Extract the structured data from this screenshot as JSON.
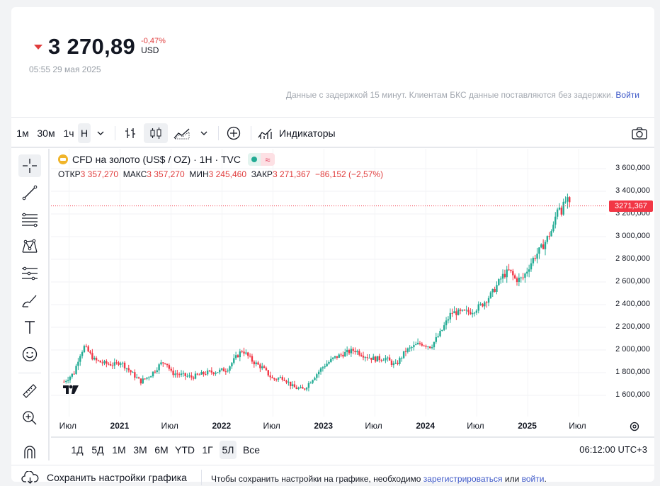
{
  "quote": {
    "price": "3 270,89",
    "change": "-0,47%",
    "currency": "USD",
    "timestamp": "05:55 29 мая 2025",
    "delay_note": "Данные с задержкой 15 минут. Клиентам БКС данные поставляются без задержки.",
    "login_link": "Войти"
  },
  "toolbar": {
    "intervals": [
      "1м",
      "30м",
      "1ч",
      "Н"
    ],
    "indicators_label": "Индикаторы"
  },
  "legend": {
    "symbol": "CFD на золото (US$ / OZ) · 1Н · TVC",
    "open_label": "ОТКР",
    "open": "3 357,270",
    "high_label": "МАКС",
    "high": "3 357,270",
    "low_label": "МИН",
    "low": "3 245,460",
    "close_label": "ЗАКР",
    "close": "3 271,367",
    "change": "−86,152 (−2,57%)",
    "badge_wave": "≈"
  },
  "colors": {
    "up": "#22ab94",
    "down": "#f23645",
    "accent": "#3c57c7"
  },
  "chart_data": {
    "type": "candlestick",
    "ylim": [
      1500,
      3600
    ],
    "y_ticks": [
      "3 600,000",
      "3 400,000",
      "3 200,000",
      "3 000,000",
      "2 800,000",
      "2 600,000",
      "2 400,000",
      "2 200,000",
      "2 000,000",
      "1 800,000",
      "1 600,000"
    ],
    "x_ticks": [
      {
        "label": "Июл",
        "bold": false
      },
      {
        "label": "2021",
        "bold": true
      },
      {
        "label": "Июл",
        "bold": false
      },
      {
        "label": "2022",
        "bold": true
      },
      {
        "label": "Июл",
        "bold": false
      },
      {
        "label": "2023",
        "bold": true
      },
      {
        "label": "Июл",
        "bold": false
      },
      {
        "label": "2024",
        "bold": true
      },
      {
        "label": "Июл",
        "bold": false
      },
      {
        "label": "2025",
        "bold": true
      },
      {
        "label": "Июл",
        "bold": false
      }
    ],
    "last_price": "3271,367",
    "last_value": 3271.367,
    "weekly_close_path": [
      [
        2020.45,
        1720
      ],
      [
        2020.55,
        1800
      ],
      [
        2020.6,
        1950
      ],
      [
        2020.65,
        2030
      ],
      [
        2020.75,
        1910
      ],
      [
        2020.85,
        1880
      ],
      [
        2020.95,
        1870
      ],
      [
        2021.0,
        1900
      ],
      [
        2021.1,
        1810
      ],
      [
        2021.2,
        1720
      ],
      [
        2021.3,
        1780
      ],
      [
        2021.4,
        1880
      ],
      [
        2021.45,
        1900
      ],
      [
        2021.5,
        1800
      ],
      [
        2021.6,
        1780
      ],
      [
        2021.7,
        1760
      ],
      [
        2021.85,
        1800
      ],
      [
        2021.95,
        1810
      ],
      [
        2022.05,
        1830
      ],
      [
        2022.15,
        1950
      ],
      [
        2022.2,
        2000
      ],
      [
        2022.3,
        1900
      ],
      [
        2022.4,
        1840
      ],
      [
        2022.5,
        1740
      ],
      [
        2022.6,
        1760
      ],
      [
        2022.7,
        1670
      ],
      [
        2022.8,
        1650
      ],
      [
        2022.9,
        1760
      ],
      [
        2023.0,
        1860
      ],
      [
        2023.1,
        1930
      ],
      [
        2023.2,
        1970
      ],
      [
        2023.3,
        2000
      ],
      [
        2023.4,
        1950
      ],
      [
        2023.5,
        1920
      ],
      [
        2023.6,
        1930
      ],
      [
        2023.7,
        1860
      ],
      [
        2023.8,
        1990
      ],
      [
        2023.9,
        2040
      ],
      [
        2023.95,
        2060
      ],
      [
        2024.05,
        2030
      ],
      [
        2024.15,
        2160
      ],
      [
        2024.25,
        2330
      ],
      [
        2024.35,
        2330
      ],
      [
        2024.45,
        2340
      ],
      [
        2024.55,
        2400
      ],
      [
        2024.65,
        2500
      ],
      [
        2024.75,
        2650
      ],
      [
        2024.82,
        2700
      ],
      [
        2024.88,
        2620
      ],
      [
        2024.95,
        2630
      ],
      [
        2025.05,
        2800
      ],
      [
        2025.15,
        2920
      ],
      [
        2025.25,
        3080
      ],
      [
        2025.3,
        3300
      ],
      [
        2025.33,
        3230
      ],
      [
        2025.38,
        3330
      ],
      [
        2025.41,
        3271
      ]
    ]
  },
  "ranges": [
    "1Д",
    "5Д",
    "1М",
    "3М",
    "6М",
    "YTD",
    "1Г",
    "5Л",
    "Все"
  ],
  "clock": "06:12:00 UTC+3",
  "footer": {
    "save_label": "Сохранить настройки графика",
    "note_prefix": "Чтобы сохранить настройки на графике, необходимо",
    "register_link": "зарегистрироваться",
    "or": "или",
    "login_link": "войти",
    "end": "."
  }
}
